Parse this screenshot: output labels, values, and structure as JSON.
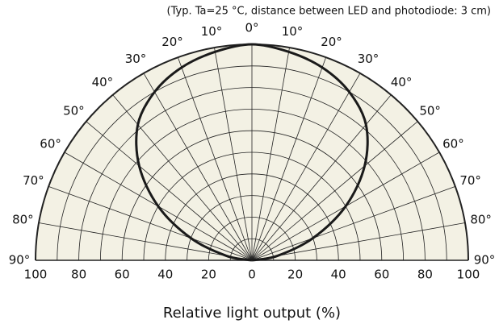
{
  "chart_data": {
    "type": "polar",
    "title": "(Typ. Ta=25 °C, distance between LED and photodiode: 3 cm)",
    "xlabel": "Relative light output (%)",
    "rlim": [
      0,
      100
    ],
    "rticks": [
      0,
      20,
      40,
      60,
      80,
      100
    ],
    "rgrid_minor": [
      10,
      30,
      50,
      70,
      90
    ],
    "angle_ticks": [
      {
        "value": -90,
        "label": "90°"
      },
      {
        "value": -80,
        "label": "80°"
      },
      {
        "value": -70,
        "label": "70°"
      },
      {
        "value": -60,
        "label": "60°"
      },
      {
        "value": -50,
        "label": "50°"
      },
      {
        "value": -40,
        "label": "40°"
      },
      {
        "value": -30,
        "label": "30°"
      },
      {
        "value": -20,
        "label": "20°"
      },
      {
        "value": -10,
        "label": "10°"
      },
      {
        "value": 0,
        "label": "0°"
      },
      {
        "value": 10,
        "label": "10°"
      },
      {
        "value": 20,
        "label": "20°"
      },
      {
        "value": 30,
        "label": "30°"
      },
      {
        "value": 40,
        "label": "40°"
      },
      {
        "value": 50,
        "label": "50°"
      },
      {
        "value": 60,
        "label": "60°"
      },
      {
        "value": 70,
        "label": "70°"
      },
      {
        "value": 80,
        "label": "80°"
      },
      {
        "value": 90,
        "label": "90°"
      }
    ],
    "grid": true,
    "background": "#f3f1e4",
    "color": "#1a1a1a",
    "x": [
      -90,
      -80,
      -70,
      -60,
      -50,
      -40,
      -30,
      -20,
      -10,
      0,
      10,
      20,
      30,
      40,
      50,
      60,
      70,
      80,
      90
    ],
    "values": [
      0,
      12,
      30,
      50,
      68,
      82,
      90,
      95,
      98,
      100,
      98,
      95,
      90,
      82,
      68,
      50,
      30,
      12,
      0
    ]
  }
}
